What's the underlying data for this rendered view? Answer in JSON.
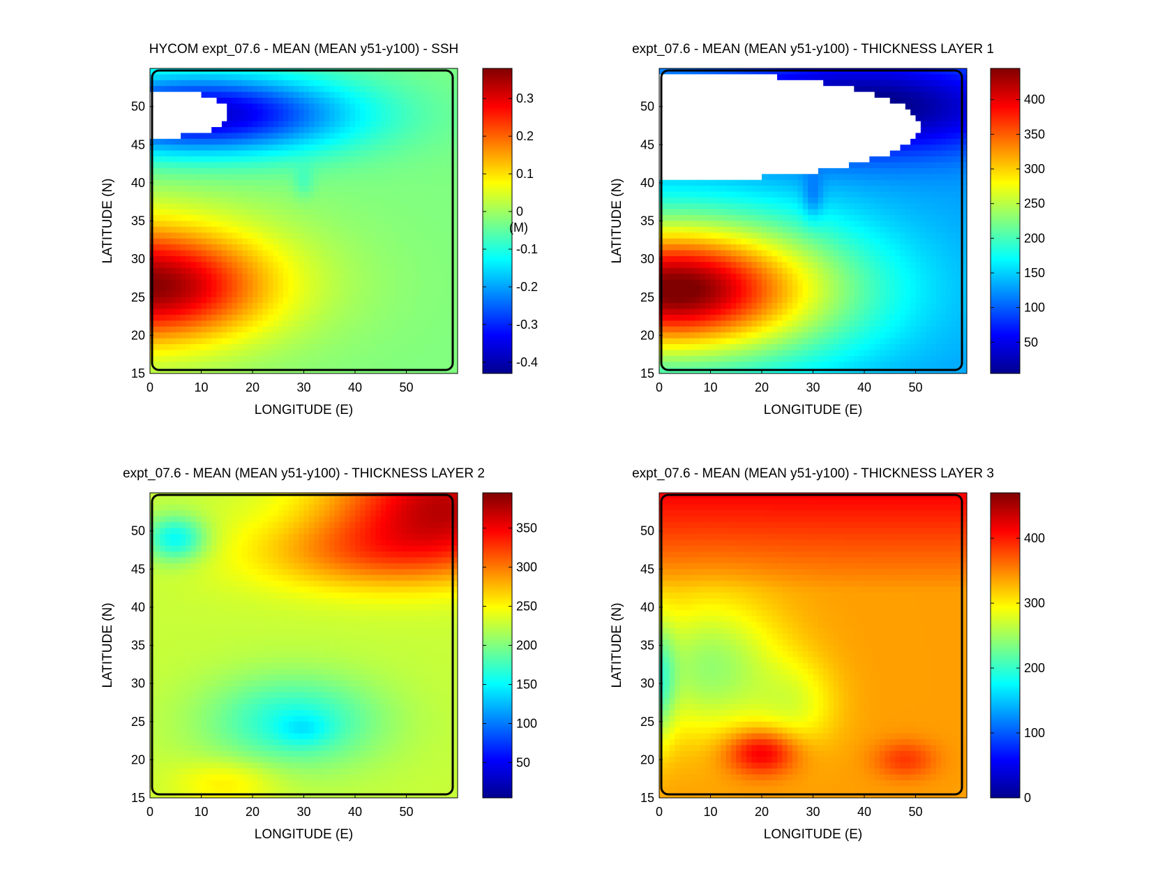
{
  "figure": {
    "background": "#ffffff",
    "colormap": [
      "#00008f",
      "#0000ff",
      "#0080ff",
      "#00ffff",
      "#80ff80",
      "#ffff00",
      "#ff8000",
      "#ff0000",
      "#800000"
    ]
  },
  "chart_data": [
    {
      "type": "heatmap",
      "title": "HYCOM expt_07.6 - MEAN (MEAN y51-y100) - SSH",
      "xlabel": "LONGITUDE (E)",
      "ylabel": "LATITUDE (N)",
      "xlim": [
        0,
        60
      ],
      "ylim": [
        15,
        55
      ],
      "xticks": [
        0,
        10,
        20,
        30,
        40,
        50
      ],
      "yticks": [
        15,
        20,
        25,
        30,
        35,
        40,
        45,
        50
      ],
      "colorbar": {
        "range": [
          -0.43,
          0.38
        ],
        "ticks": [
          -0.4,
          -0.3,
          -0.2,
          -0.1,
          0,
          0.1,
          0.2,
          0.3
        ],
        "unit_label": "(M)"
      },
      "field": "ssh",
      "white_region": {
        "lon_max": 15.5,
        "lat_min": 46,
        "lat_max": 52.2
      }
    },
    {
      "type": "heatmap",
      "title": "expt_07.6 - MEAN (MEAN y51-y100) - THICKNESS LAYER 1",
      "xlabel": "LONGITUDE (E)",
      "ylabel": "LATITUDE (N)",
      "xlim": [
        0,
        60
      ],
      "ylim": [
        15,
        55
      ],
      "xticks": [
        0,
        10,
        20,
        30,
        40,
        50
      ],
      "yticks": [
        15,
        20,
        25,
        30,
        35,
        40,
        45,
        50
      ],
      "colorbar": {
        "range": [
          5,
          445
        ],
        "ticks": [
          50,
          100,
          150,
          200,
          250,
          300,
          350,
          400
        ],
        "unit_label": ""
      },
      "field": "layer1",
      "white_region": {
        "lon_max": 51,
        "lat_min": 40.5,
        "lat_max": 54.3
      }
    },
    {
      "type": "heatmap",
      "title": "expt_07.6 - MEAN (MEAN y51-y100) - THICKNESS LAYER 2",
      "xlabel": "LONGITUDE (E)",
      "ylabel": "LATITUDE (N)",
      "xlim": [
        0,
        60
      ],
      "ylim": [
        15,
        55
      ],
      "xticks": [
        0,
        10,
        20,
        30,
        40,
        50
      ],
      "yticks": [
        15,
        20,
        25,
        30,
        35,
        40,
        45,
        50
      ],
      "colorbar": {
        "range": [
          5,
          395
        ],
        "ticks": [
          50,
          100,
          150,
          200,
          250,
          300,
          350
        ],
        "unit_label": ""
      },
      "field": "layer2"
    },
    {
      "type": "heatmap",
      "title": "expt_07.6 - MEAN (MEAN y51-y100) - THICKNESS LAYER 3",
      "xlabel": "LONGITUDE (E)",
      "ylabel": "LATITUDE (N)",
      "xlim": [
        0,
        60
      ],
      "ylim": [
        15,
        55
      ],
      "xticks": [
        0,
        10,
        20,
        30,
        40,
        50
      ],
      "yticks": [
        15,
        20,
        25,
        30,
        35,
        40,
        45,
        50
      ],
      "colorbar": {
        "range": [
          0,
          470
        ],
        "ticks": [
          0,
          100,
          200,
          300,
          400
        ],
        "unit_label": ""
      },
      "field": "layer3"
    }
  ]
}
